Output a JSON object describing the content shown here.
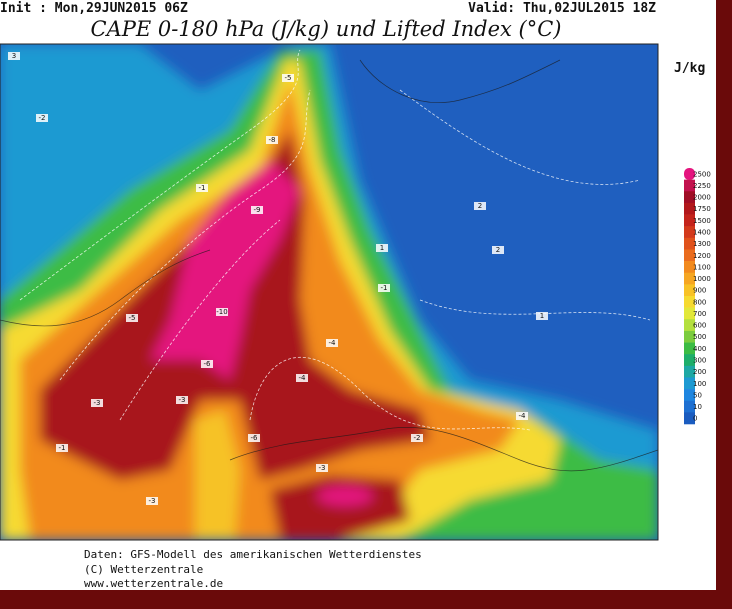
{
  "header": {
    "init": "Init : Mon,29JUN2015 06Z",
    "valid": "Valid: Thu,02JUL2015 18Z",
    "title": "CAPE 0-180 hPa (J/kg) und Lifted Index (°C)"
  },
  "legend": {
    "unit": "J/kg",
    "levels": [
      2500,
      2250,
      2000,
      1750,
      1500,
      1400,
      1300,
      1200,
      1100,
      1000,
      900,
      800,
      700,
      600,
      500,
      400,
      300,
      200,
      100,
      50,
      10,
      0
    ],
    "colors": [
      "#e4147e",
      "#c2124e",
      "#a00e26",
      "#b2181c",
      "#c4241c",
      "#d33a1c",
      "#e0521c",
      "#ea6c1e",
      "#f28a1e",
      "#f6a622",
      "#f8c226",
      "#f6da30",
      "#e2e83a",
      "#b4e03e",
      "#7ccc3e",
      "#3cbc44",
      "#1eae6a",
      "#1ea8a4",
      "#1e9ad2",
      "#1e86e0",
      "#1e70d2",
      "#1a5cc0"
    ]
  },
  "map_labels": [
    "3",
    "-2",
    "-1",
    "-3",
    "-5",
    "-8",
    "-6",
    "-10",
    "-9",
    "-4",
    "-6",
    "-3",
    "-1",
    "1",
    "2",
    "2",
    "1",
    "-4",
    "-3",
    "-1",
    "-2",
    "-5",
    "-3",
    "-4"
  ],
  "footer": {
    "line1": "Daten: GFS-Modell des amerikanischen Wetterdienstes",
    "line2": "(C) Wetterzentrale",
    "line3": "www.wetterzentrale.de"
  }
}
